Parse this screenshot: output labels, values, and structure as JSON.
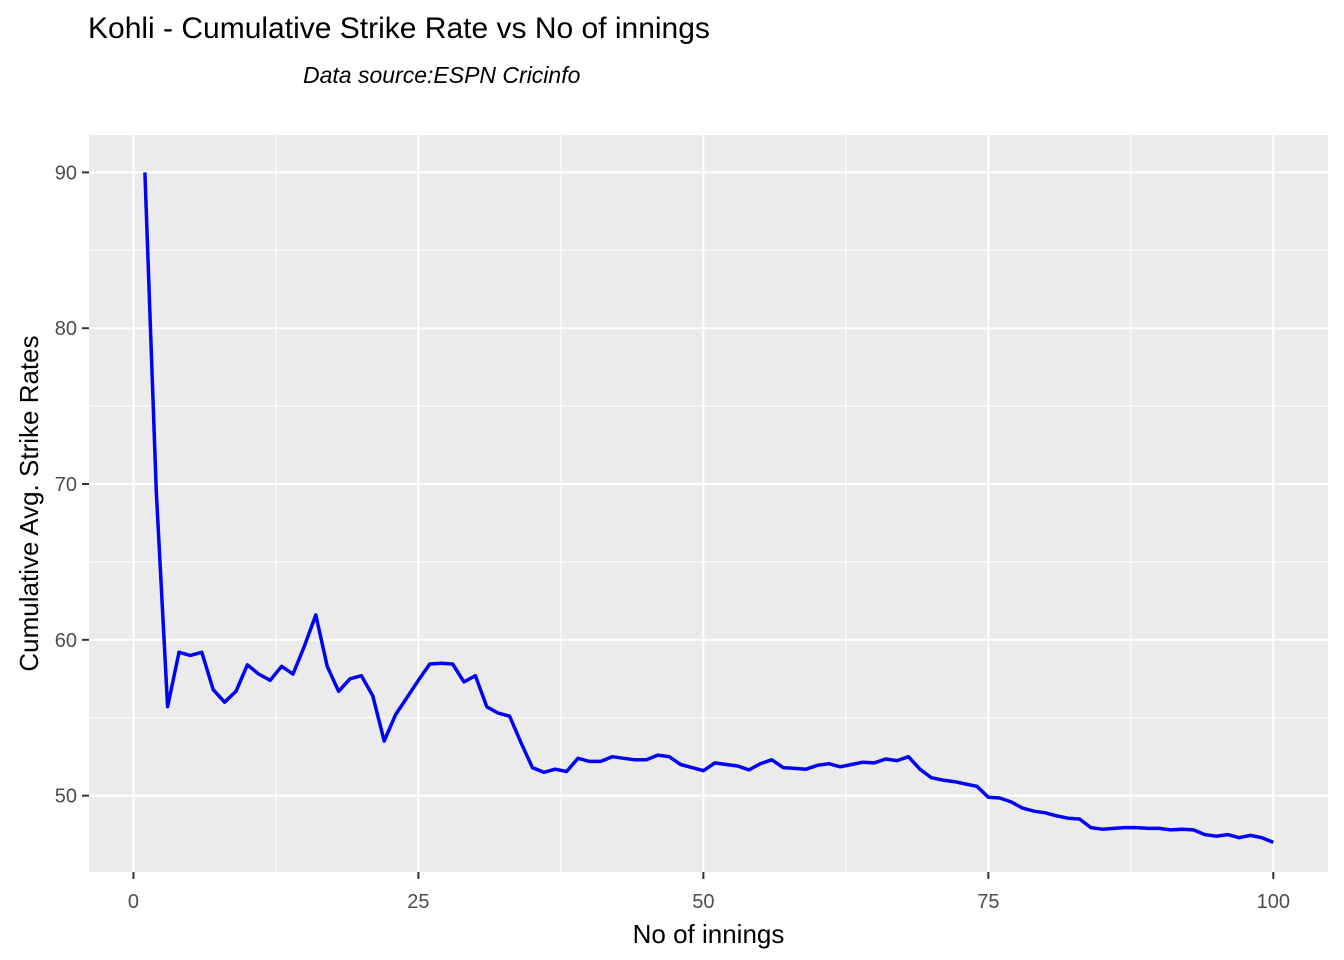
{
  "page": {
    "title": "Kohli - Cumulative Strike Rate vs No of innings",
    "subtitle": "Data source:ESPN Cricinfo"
  },
  "chart_data": {
    "type": "line",
    "title": "Kohli - Cumulative Strike Rate vs No of innings",
    "subtitle": "Data source:ESPN Cricinfo",
    "xlabel": "No of innings",
    "ylabel": "Cumulative Avg. Strike Rates",
    "x_ticks": [
      0,
      25,
      50,
      75,
      100
    ],
    "y_ticks": [
      50,
      60,
      70,
      80,
      90
    ],
    "x_minor_gridlines": [
      12.5,
      37.5,
      62.5,
      87.5
    ],
    "y_minor_gridlines": [
      55,
      65,
      75,
      85
    ],
    "xlim": [
      -3.9,
      104.8
    ],
    "ylim": [
      45.1,
      92.4
    ],
    "grid": "major-and-minor-white-on-gray",
    "legend": "none",
    "colors": {
      "panel_background": "#EBEBEB",
      "gridline": "#FFFFFF",
      "line": "#0202F5",
      "axis_text": "#4D4D4D",
      "tick_mark": "#333333",
      "title_text": "#000000"
    },
    "series": [
      {
        "name": "Cumulative Avg. Strike Rate",
        "x": [
          1,
          2,
          3,
          4,
          5,
          6,
          7,
          8,
          9,
          10,
          11,
          12,
          13,
          14,
          15,
          16,
          17,
          18,
          19,
          20,
          21,
          22,
          23,
          24,
          25,
          26,
          27,
          28,
          29,
          30,
          31,
          32,
          33,
          34,
          35,
          36,
          37,
          38,
          39,
          40,
          41,
          42,
          43,
          44,
          45,
          46,
          47,
          48,
          49,
          50,
          51,
          52,
          53,
          54,
          55,
          56,
          57,
          58,
          59,
          60,
          61,
          62,
          63,
          64,
          65,
          66,
          67,
          68,
          69,
          70,
          71,
          72,
          73,
          74,
          75,
          76,
          77,
          78,
          79,
          80,
          81,
          82,
          83,
          84,
          85,
          86,
          87,
          88,
          89,
          90,
          91,
          92,
          93,
          94,
          95,
          96,
          97,
          98,
          99,
          100
        ],
        "y": [
          90.0,
          69.5,
          55.7,
          59.2,
          59.0,
          59.2,
          56.8,
          56.0,
          56.7,
          58.4,
          57.8,
          57.4,
          58.3,
          57.8,
          59.6,
          61.6,
          58.3,
          56.7,
          57.5,
          57.7,
          56.4,
          53.5,
          55.2,
          56.3,
          57.4,
          58.45,
          58.5,
          58.45,
          57.3,
          57.7,
          55.7,
          55.3,
          55.1,
          53.4,
          51.8,
          51.5,
          51.7,
          51.55,
          52.4,
          52.2,
          52.2,
          52.5,
          52.4,
          52.3,
          52.3,
          52.6,
          52.5,
          52.0,
          51.8,
          51.6,
          52.1,
          52.0,
          51.9,
          51.65,
          52.05,
          52.3,
          51.8,
          51.75,
          51.7,
          51.95,
          52.05,
          51.85,
          52.0,
          52.15,
          52.1,
          52.35,
          52.25,
          52.5,
          51.7,
          51.15,
          51.0,
          50.9,
          50.75,
          50.6,
          49.9,
          49.85,
          49.6,
          49.2,
          49.0,
          48.9,
          48.7,
          48.55,
          48.5,
          47.95,
          47.85,
          47.9,
          47.95,
          47.95,
          47.9,
          47.9,
          47.8,
          47.85,
          47.8,
          47.5,
          47.4,
          47.5,
          47.3,
          47.45,
          47.3,
          47.0
        ]
      }
    ]
  }
}
